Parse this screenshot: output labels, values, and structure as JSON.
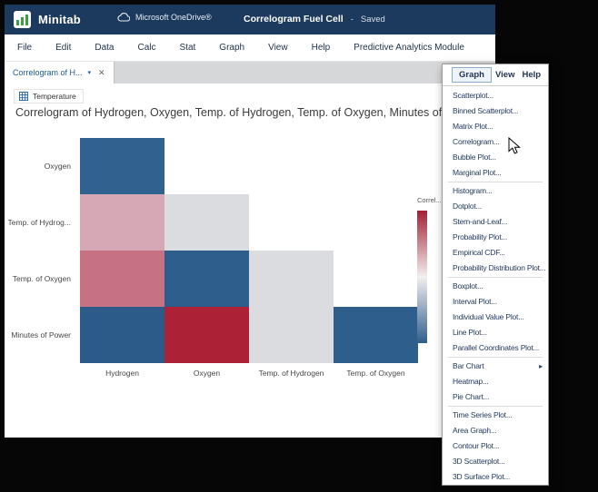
{
  "colors": {
    "topbar_bg": "#1C3A5E",
    "menu_text": "#223A5E",
    "accent_blue": "#2E5E8C",
    "accent_red": "#A82134"
  },
  "window": {
    "topbar": {
      "app_name": "Minitab",
      "onedrive_label": "Microsoft OneDrive®",
      "doc_title": "Correlogram Fuel Cell",
      "separator": "-",
      "save_status": "Saved"
    },
    "menubar": {
      "items": [
        "File",
        "Edit",
        "Data",
        "Calc",
        "Stat",
        "Graph",
        "View",
        "Help",
        "Predictive Analytics Module"
      ]
    },
    "tab": {
      "label": "Correlogram of H...",
      "chevron_icon": "▾",
      "close_icon": "✕"
    },
    "worksheet_chip": {
      "label": "Temperature"
    }
  },
  "chart_data": {
    "type": "heatmap",
    "title": "Correlogram of Hydrogen, Oxygen, Temp. of Hydrogen, Temp. of Oxygen, Minutes of P",
    "x_categories": [
      "Hydrogen",
      "Oxygen",
      "Temp. of Hydrogen",
      "Temp. of Oxygen"
    ],
    "y_categories": [
      "Oxygen",
      "Temp. of Hydrog...",
      "Temp. of Oxygen",
      "Minutes of Power"
    ],
    "legend": {
      "title": "Correl...",
      "range_top_to_bottom": [
        1.0,
        -1.0
      ],
      "gradient": [
        "#A32033",
        "#F2EFEF",
        "#2E5E8C"
      ]
    },
    "cells": [
      {
        "row": 0,
        "col": 0,
        "y": "Oxygen",
        "x": "Hydrogen",
        "color": "#31618F",
        "value_est": -0.9
      },
      {
        "row": 1,
        "col": 0,
        "y": "Temp. of Hydrog...",
        "x": "Hydrogen",
        "color": "#D6A7B4",
        "value_est": 0.3
      },
      {
        "row": 1,
        "col": 1,
        "y": "Temp. of Hydrog...",
        "x": "Oxygen",
        "color": "#DBDCE0",
        "value_est": 0.0
      },
      {
        "row": 2,
        "col": 0,
        "y": "Temp. of Oxygen",
        "x": "Hydrogen",
        "color": "#C77284",
        "value_est": 0.5
      },
      {
        "row": 2,
        "col": 1,
        "y": "Temp. of Oxygen",
        "x": "Oxygen",
        "color": "#2E5E8C",
        "value_est": -0.9
      },
      {
        "row": 2,
        "col": 2,
        "y": "Temp. of Oxygen",
        "x": "Temp. of Hydrogen",
        "color": "#DBDCE0",
        "value_est": 0.0
      },
      {
        "row": 3,
        "col": 0,
        "y": "Minutes of Power",
        "x": "Hydrogen",
        "color": "#2C5B89",
        "value_est": -0.85
      },
      {
        "row": 3,
        "col": 1,
        "y": "Minutes of Power",
        "x": "Oxygen",
        "color": "#AC2136",
        "value_est": 0.95
      },
      {
        "row": 3,
        "col": 2,
        "y": "Minutes of Power",
        "x": "Temp. of Hydrogen",
        "color": "#DBDCE0",
        "value_est": 0.0
      },
      {
        "row": 3,
        "col": 3,
        "y": "Minutes of Power",
        "x": "Temp. of Oxygen",
        "color": "#2E5E8C",
        "value_est": -0.9
      }
    ]
  },
  "context_menu": {
    "tabs": [
      {
        "label": "Graph",
        "active": true
      },
      {
        "label": "View",
        "active": false
      },
      {
        "label": "Help",
        "active": false
      }
    ],
    "groups": [
      [
        "Scatterplot...",
        "Binned Scatterplot...",
        "Matrix Plot...",
        "Correlogram...",
        "Bubble Plot...",
        "Marginal Plot..."
      ],
      [
        "Histogram...",
        "Dotplot...",
        "Stem-and-Leaf...",
        "Probability Plot...",
        "Empirical CDF...",
        "Probability Distribution Plot..."
      ],
      [
        "Boxplot...",
        "Interval Plot...",
        "Individual Value Plot...",
        "Line Plot...",
        "Parallel Coordinates Plot..."
      ],
      [
        "Bar Chart",
        "Heatmap...",
        "Pie Chart..."
      ],
      [
        "Time Series Plot...",
        "Area Graph...",
        "Contour Plot...",
        "3D Scatterplot...",
        "3D Surface Plot..."
      ]
    ],
    "submenu_items": [
      "Bar Chart"
    ],
    "submenu_arrow_icon": "▸",
    "hovered_item": "Correlogram..."
  }
}
